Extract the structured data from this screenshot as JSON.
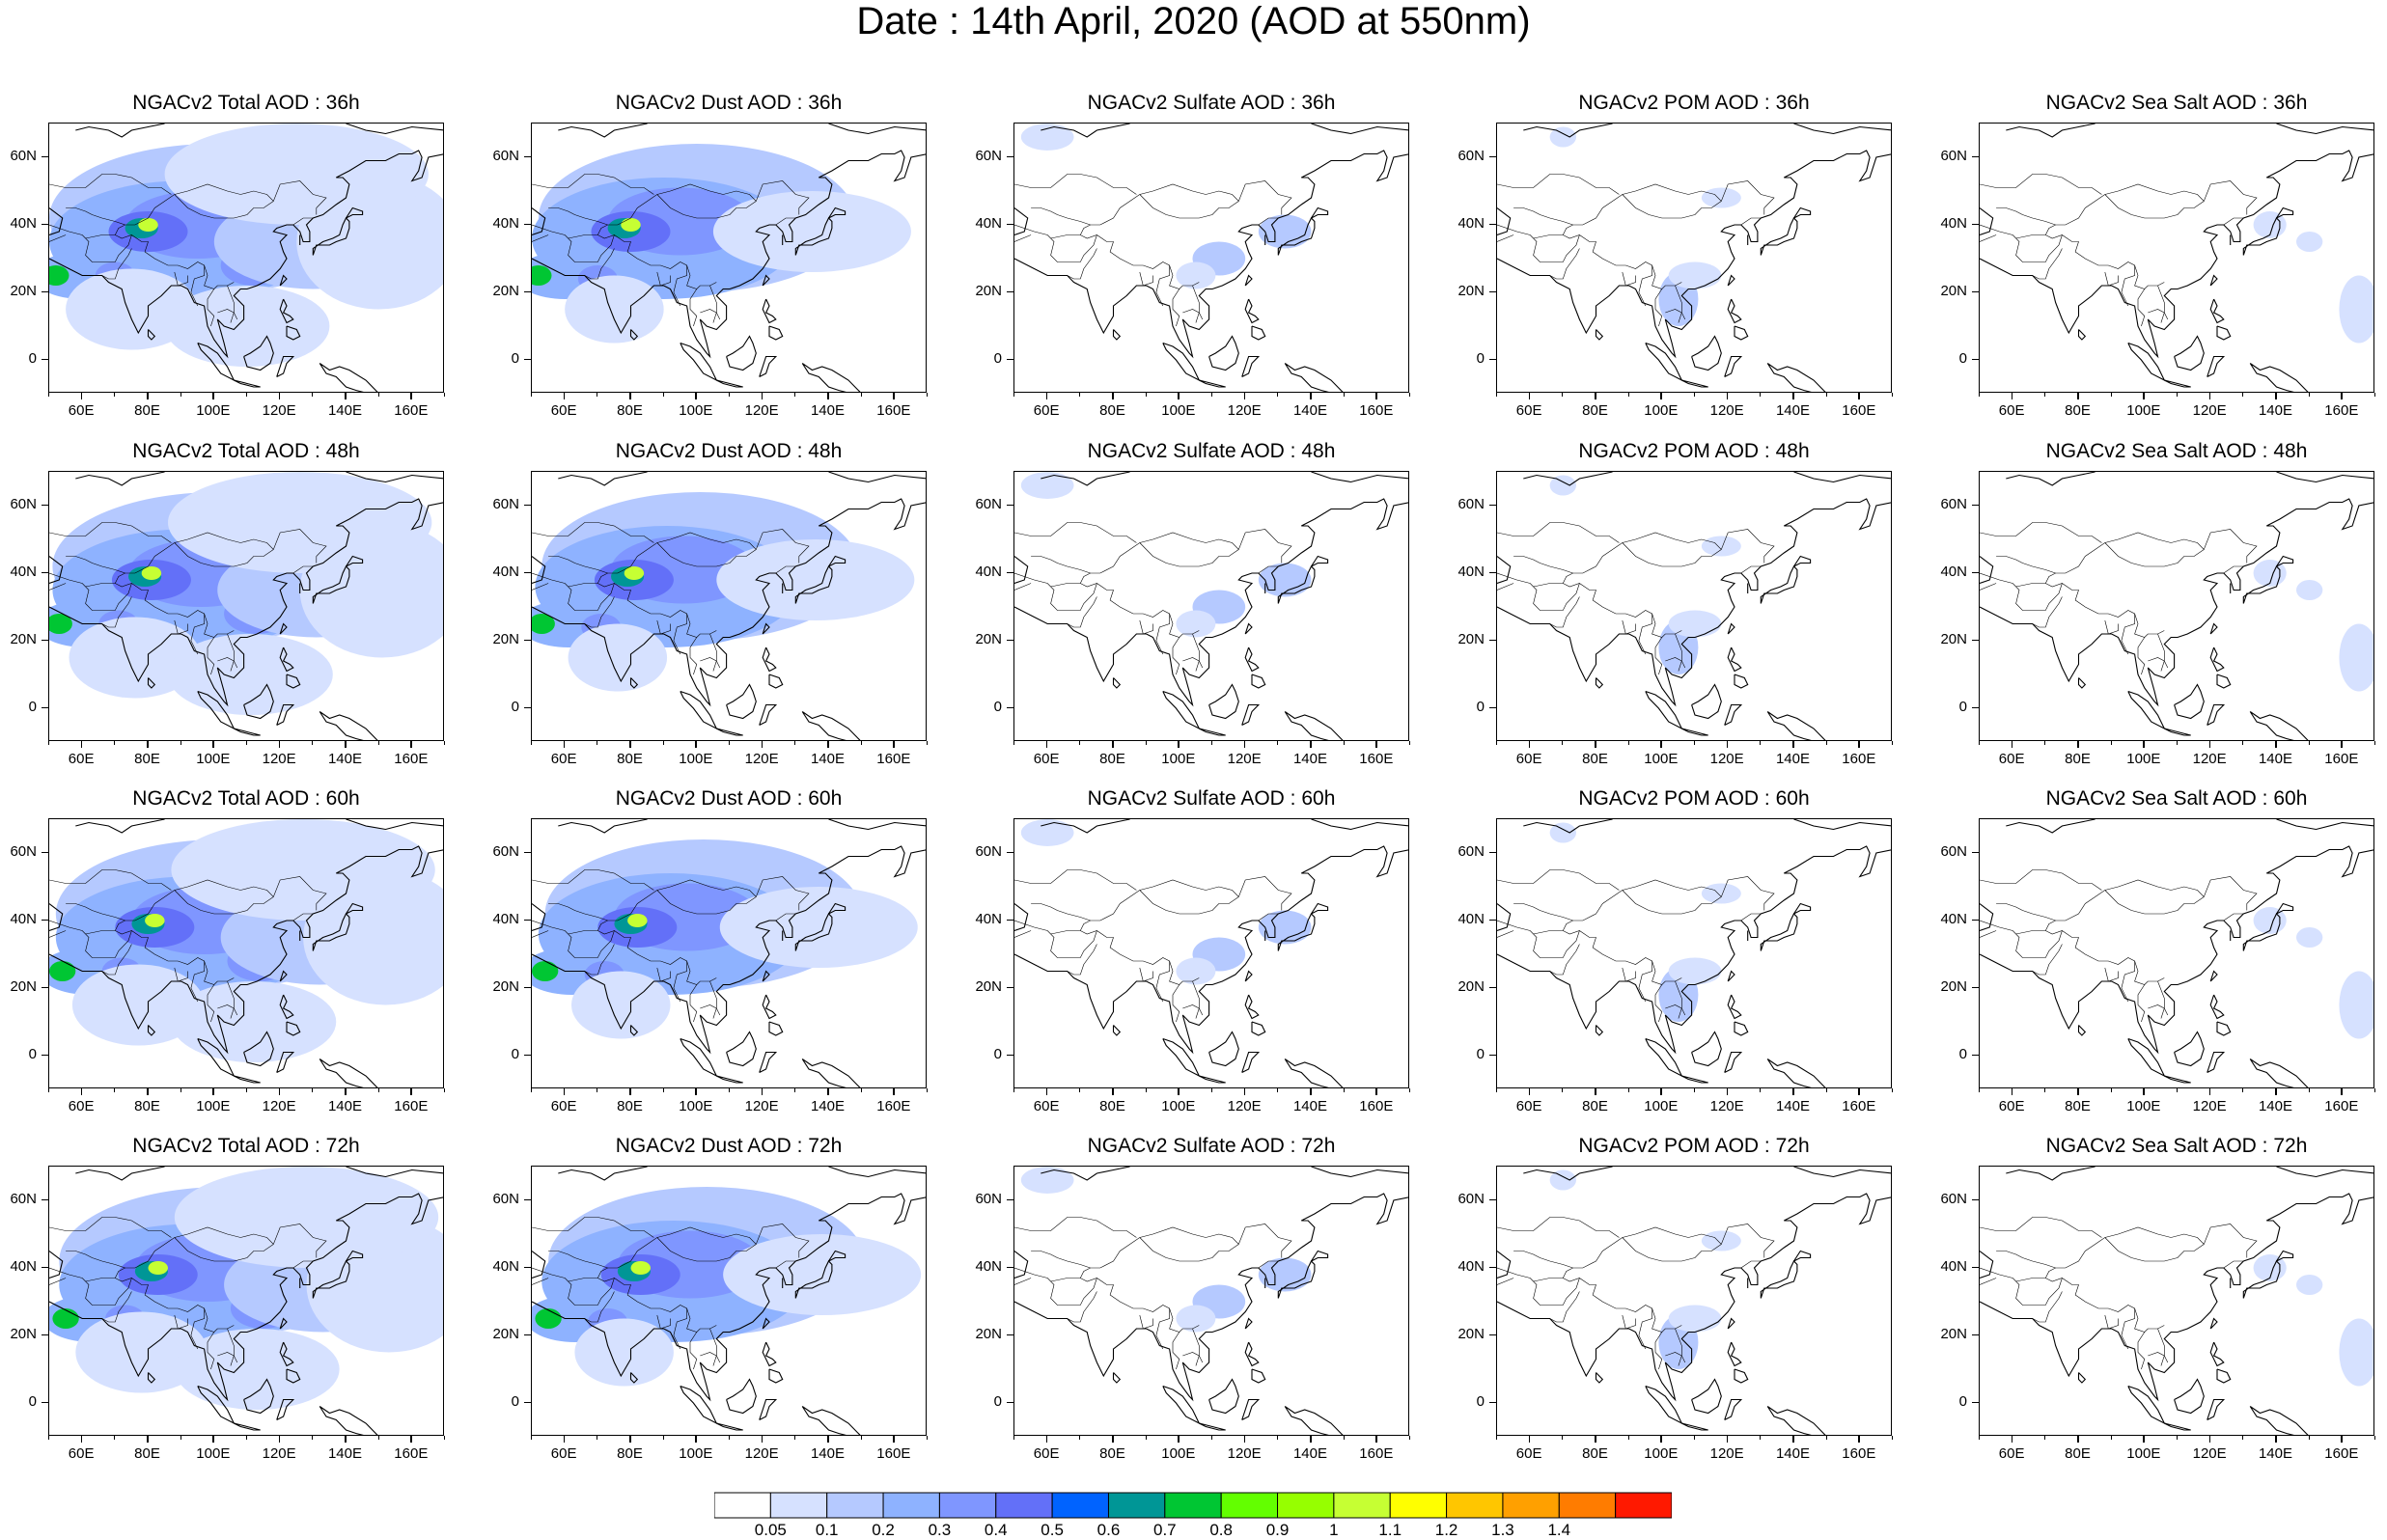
{
  "title": "Date : 14th April, 2020 (AOD at 550nm)",
  "lat_ticks": [
    "60N",
    "40N",
    "20N",
    "0"
  ],
  "lon_ticks": [
    "60E",
    "80E",
    "100E",
    "120E",
    "140E",
    "160E"
  ],
  "species": [
    {
      "id": "total",
      "label": "NGACv2 Total AOD"
    },
    {
      "id": "dust",
      "label": "NGACv2 Dust AOD"
    },
    {
      "id": "sulfate",
      "label": "NGACv2 Sulfate AOD"
    },
    {
      "id": "pom",
      "label": "NGACv2 POM AOD"
    },
    {
      "id": "seasalt",
      "label": "NGACv2 Sea Salt AOD"
    }
  ],
  "forecast_hours": [
    "36h",
    "48h",
    "60h",
    "72h"
  ],
  "panel_titles": [
    [
      "NGACv2 Total AOD : 36h",
      "NGACv2 Dust AOD : 36h",
      "NGACv2 Sulfate AOD : 36h",
      "NGACv2 POM AOD : 36h",
      "NGACv2 Sea Salt AOD : 36h"
    ],
    [
      "NGACv2 Total AOD : 48h",
      "NGACv2 Dust AOD : 48h",
      "NGACv2 Sulfate AOD : 48h",
      "NGACv2 POM AOD : 48h",
      "NGACv2 Sea Salt AOD : 48h"
    ],
    [
      "NGACv2 Total AOD : 60h",
      "NGACv2 Dust AOD : 60h",
      "NGACv2 Sulfate AOD : 60h",
      "NGACv2 POM AOD : 60h",
      "NGACv2 Sea Salt AOD : 60h"
    ],
    [
      "NGACv2 Total AOD : 72h",
      "NGACv2 Dust AOD : 72h",
      "NGACv2 Sulfate AOD : 72h",
      "NGACv2 POM AOD : 72h",
      "NGACv2 Sea Salt  AOD : 72h"
    ]
  ],
  "colorbar": {
    "labels": [
      "0.05",
      "0.1",
      "0.2",
      "0.3",
      "0.4",
      "0.5",
      "0.6",
      "0.7",
      "0.8",
      "0.9",
      "1",
      "1.1",
      "1.2",
      "1.3",
      "1.4"
    ],
    "colors": [
      "#ffffff",
      "#d6e1ff",
      "#b5c9ff",
      "#8eb2ff",
      "#7f96ff",
      "#6370f8",
      "#0063ff",
      "#009696",
      "#00c633",
      "#63ff00",
      "#96ff00",
      "#c6ff33",
      "#ffff00",
      "#ffc600",
      "#ffa000",
      "#ff7c00",
      "#ff1900"
    ]
  },
  "map_extent": {
    "lon": [
      50,
      170
    ],
    "lat": [
      -10,
      70
    ]
  }
}
